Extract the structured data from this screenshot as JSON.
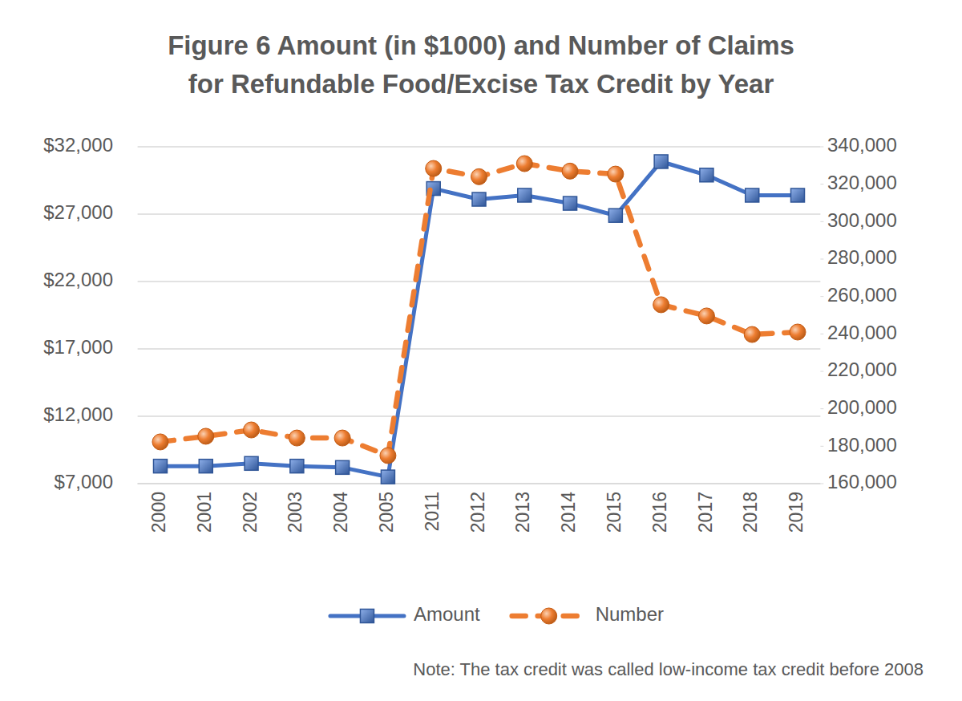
{
  "chart_data": {
    "type": "line",
    "title": "Figure 6 Amount (in $1000) and Number of Claims\nfor Refundable Food/Excise Tax Credit by Year",
    "annotations": [
      "Note: The tax credit was called low-income tax credit before 2008"
    ],
    "categories": [
      "2000",
      "2001",
      "2002",
      "2003",
      "2004",
      "2005",
      "2011",
      "2012",
      "2013",
      "2014",
      "2015",
      "2016",
      "2017",
      "2018",
      "2019"
    ],
    "series": [
      {
        "name": "Amount",
        "color": "#4472c4",
        "marker": "square",
        "line_style": "solid",
        "values": [
          8300,
          8300,
          8500,
          8300,
          8200,
          7500,
          28900,
          28100,
          28400,
          27800,
          26900,
          30900,
          29900,
          28400,
          28400
        ]
      },
      {
        "name": "Number",
        "color": "#ed7d31",
        "marker": "circle",
        "line_style": "dashed",
        "axis": "y2",
        "values": [
          182300,
          185300,
          188700,
          184400,
          184400,
          175000,
          328400,
          324000,
          331000,
          327000,
          325400,
          255600,
          249600,
          239700,
          241000
        ]
      }
    ],
    "ylim": [
      7000,
      32000
    ],
    "yticks": [
      {
        "value": 7000,
        "label": "$7,000"
      },
      {
        "value": 12000,
        "label": "$12,000"
      },
      {
        "value": 17000,
        "label": "$17,000"
      },
      {
        "value": 22000,
        "label": "$22,000"
      },
      {
        "value": 27000,
        "label": "$27,000"
      },
      {
        "value": 32000,
        "label": "$32,000"
      }
    ],
    "y2lim": [
      160000,
      340000
    ],
    "y2ticks": [
      {
        "value": 160000,
        "label": "160,000"
      },
      {
        "value": 180000,
        "label": "180,000"
      },
      {
        "value": 200000,
        "label": "200,000"
      },
      {
        "value": 220000,
        "label": "220,000"
      },
      {
        "value": 240000,
        "label": "240,000"
      },
      {
        "value": 260000,
        "label": "260,000"
      },
      {
        "value": 280000,
        "label": "280,000"
      },
      {
        "value": 300000,
        "label": "300,000"
      },
      {
        "value": 320000,
        "label": "320,000"
      },
      {
        "value": 340000,
        "label": "340,000"
      }
    ],
    "grid": true,
    "legend": "bottom"
  }
}
